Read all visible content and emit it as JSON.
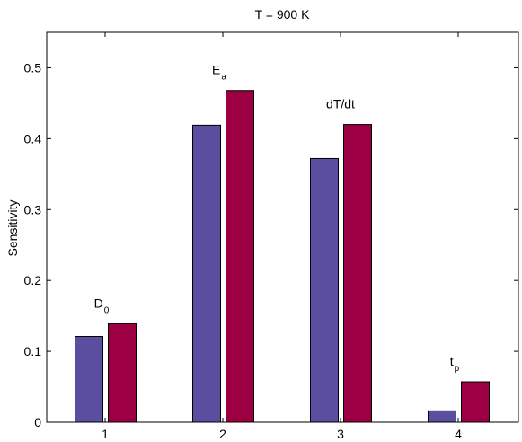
{
  "chart_data": {
    "type": "bar",
    "title": "T = 900 K",
    "xlabel": "",
    "ylabel": "Sensitivity",
    "categories": [
      "1",
      "2",
      "3",
      "4"
    ],
    "series": [
      {
        "color": "#5b4ea1",
        "values": [
          0.121,
          0.419,
          0.372,
          0.016
        ]
      },
      {
        "color": "#9c0042",
        "values": [
          0.139,
          0.468,
          0.42,
          0.057
        ]
      }
    ],
    "ylim": [
      0,
      0.55
    ],
    "yticks": [
      "0",
      "0.1",
      "0.2",
      "0.3",
      "0.4",
      "0.5"
    ],
    "annotations": [
      {
        "category": 0,
        "base": "D",
        "sub": "0"
      },
      {
        "category": 1,
        "base": "E",
        "sub": "a"
      },
      {
        "category": 2,
        "base": "dT/dt",
        "sub": ""
      },
      {
        "category": 3,
        "base": "t",
        "sub": "p"
      }
    ],
    "grid": false,
    "legend": "none"
  }
}
